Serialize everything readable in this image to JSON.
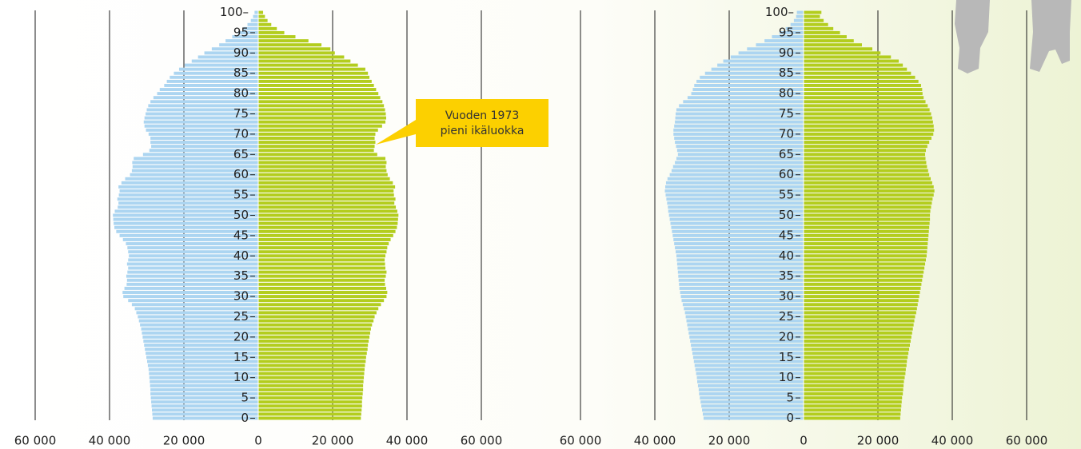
{
  "chart_data": [
    {
      "type": "pyramid",
      "y": [
        0,
        1,
        2,
        3,
        4,
        5,
        6,
        7,
        8,
        9,
        10,
        11,
        12,
        13,
        14,
        15,
        16,
        17,
        18,
        19,
        20,
        21,
        22,
        23,
        24,
        25,
        26,
        27,
        28,
        29,
        30,
        31,
        32,
        33,
        34,
        35,
        36,
        37,
        38,
        39,
        40,
        41,
        42,
        43,
        44,
        45,
        46,
        47,
        48,
        49,
        50,
        51,
        52,
        53,
        54,
        55,
        56,
        57,
        58,
        59,
        60,
        61,
        62,
        63,
        64,
        65,
        66,
        67,
        68,
        69,
        70,
        71,
        72,
        73,
        74,
        75,
        76,
        77,
        78,
        79,
        80,
        81,
        82,
        83,
        84,
        85,
        86,
        87,
        88,
        89,
        90,
        91,
        92,
        93,
        94,
        95,
        96,
        97,
        98,
        99,
        100
      ],
      "ylim": [
        -0.5,
        100.5
      ],
      "yticks": [
        0,
        5,
        10,
        15,
        20,
        25,
        30,
        35,
        40,
        45,
        50,
        55,
        60,
        65,
        70,
        75,
        80,
        85,
        90,
        95,
        {
          "value": 100,
          "label": "100–"
        }
      ],
      "xlim": [
        -60000,
        60000
      ],
      "xticks": [
        {
          "value": -60000,
          "label": "60 000"
        },
        {
          "value": -40000,
          "label": "40 000"
        },
        {
          "value": -20000,
          "label": "20 000"
        },
        0,
        {
          "value": 20000,
          "label": "20 000"
        },
        {
          "value": 40000,
          "label": "40 000"
        },
        {
          "value": 60000,
          "label": "60 000"
        }
      ],
      "grid": true,
      "annotation": [
        "Vuoden 1973",
        "pieni ikäluokka"
      ],
      "series": [
        {
          "color": "#acd5f1",
          "values": [
            -28400,
            -28500,
            -28600,
            -28700,
            -28800,
            -28900,
            -29000,
            -29000,
            -29100,
            -29200,
            -29300,
            -29400,
            -29500,
            -29700,
            -29900,
            -30100,
            -30300,
            -30500,
            -30700,
            -30900,
            -31100,
            -31300,
            -31500,
            -31800,
            -32100,
            -32400,
            -32800,
            -33200,
            -34000,
            -35000,
            -36300,
            -36500,
            -36000,
            -35400,
            -35300,
            -35500,
            -35200,
            -35000,
            -35300,
            -35000,
            -34800,
            -35000,
            -35200,
            -35600,
            -36400,
            -37300,
            -38200,
            -38700,
            -38900,
            -39000,
            -39100,
            -38600,
            -37800,
            -37600,
            -37900,
            -37500,
            -37300,
            -37600,
            -36800,
            -35800,
            -34500,
            -34000,
            -33800,
            -33900,
            -33500,
            -31000,
            -29300,
            -28800,
            -29000,
            -29000,
            -29500,
            -30200,
            -30600,
            -30800,
            -30600,
            -30300,
            -30000,
            -29600,
            -29000,
            -28200,
            -27200,
            -26500,
            -25300,
            -24600,
            -23800,
            -22700,
            -21300,
            -19800,
            -17900,
            -16200,
            -14500,
            -12500,
            -10500,
            -8800,
            -7000,
            -5400,
            -4000,
            -2900,
            -2000,
            -1400,
            -1000
          ]
        },
        {
          "color": "#b3cd1e",
          "values": [
            27600,
            27700,
            27800,
            27900,
            27900,
            28000,
            28100,
            28200,
            28200,
            28300,
            28400,
            28500,
            28600,
            28700,
            28900,
            29000,
            29200,
            29400,
            29500,
            29700,
            29900,
            30100,
            30300,
            30600,
            31000,
            31300,
            31800,
            32300,
            33000,
            33800,
            34500,
            34700,
            34400,
            34100,
            34000,
            34300,
            34500,
            34200,
            34100,
            34000,
            34200,
            34500,
            34700,
            35100,
            35600,
            36300,
            36900,
            37300,
            37500,
            37600,
            37700,
            37400,
            37000,
            36600,
            36900,
            36500,
            36400,
            36800,
            36200,
            35400,
            34800,
            34500,
            34300,
            34500,
            34200,
            32000,
            31100,
            31300,
            31500,
            31300,
            31500,
            32200,
            33300,
            34200,
            34400,
            34300,
            34100,
            33800,
            33400,
            32800,
            32300,
            31700,
            31100,
            30500,
            29900,
            29500,
            28800,
            26800,
            24800,
            23100,
            20600,
            19400,
            17000,
            13500,
            10000,
            7000,
            5000,
            3500,
            2500,
            1800,
            1300
          ]
        }
      ]
    },
    {
      "type": "pyramid",
      "y": [
        0,
        1,
        2,
        3,
        4,
        5,
        6,
        7,
        8,
        9,
        10,
        11,
        12,
        13,
        14,
        15,
        16,
        17,
        18,
        19,
        20,
        21,
        22,
        23,
        24,
        25,
        26,
        27,
        28,
        29,
        30,
        31,
        32,
        33,
        34,
        35,
        36,
        37,
        38,
        39,
        40,
        41,
        42,
        43,
        44,
        45,
        46,
        47,
        48,
        49,
        50,
        51,
        52,
        53,
        54,
        55,
        56,
        57,
        58,
        59,
        60,
        61,
        62,
        63,
        64,
        65,
        66,
        67,
        68,
        69,
        70,
        71,
        72,
        73,
        74,
        75,
        76,
        77,
        78,
        79,
        80,
        81,
        82,
        83,
        84,
        85,
        86,
        87,
        88,
        89,
        90,
        91,
        92,
        93,
        94,
        95,
        96,
        97,
        98,
        99,
        100
      ],
      "ylim": [
        -0.5,
        100.5
      ],
      "yticks": [
        0,
        5,
        10,
        15,
        20,
        25,
        30,
        35,
        40,
        45,
        50,
        55,
        60,
        65,
        70,
        75,
        80,
        85,
        90,
        95,
        {
          "value": 100,
          "label": "100–"
        }
      ],
      "xlim": [
        -60000,
        60000
      ],
      "xticks": [
        {
          "value": -60000,
          "label": "60 000"
        },
        {
          "value": -40000,
          "label": "40 000"
        },
        {
          "value": -20000,
          "label": "20 000"
        },
        0,
        {
          "value": 20000,
          "label": "20 000"
        },
        {
          "value": 40000,
          "label": "40 000"
        },
        {
          "value": 60000,
          "label": "60 000"
        }
      ],
      "grid": true,
      "series": [
        {
          "color": "#acd5f1",
          "values": [
            -26900,
            -27100,
            -27300,
            -27500,
            -27700,
            -27900,
            -28100,
            -28200,
            -28400,
            -28600,
            -28700,
            -28900,
            -29100,
            -29300,
            -29500,
            -29700,
            -29900,
            -30100,
            -30300,
            -30500,
            -30700,
            -30900,
            -31100,
            -31300,
            -31500,
            -31700,
            -31900,
            -32200,
            -32500,
            -32800,
            -33000,
            -33200,
            -33400,
            -33500,
            -33600,
            -33700,
            -33800,
            -33900,
            -34000,
            -34100,
            -34200,
            -34400,
            -34600,
            -34800,
            -35000,
            -35200,
            -35400,
            -35600,
            -35800,
            -36000,
            -36200,
            -36400,
            -36500,
            -36700,
            -36900,
            -37100,
            -37300,
            -37200,
            -37000,
            -36600,
            -36000,
            -35500,
            -35100,
            -34600,
            -34200,
            -33800,
            -34000,
            -34300,
            -34600,
            -34800,
            -35000,
            -35000,
            -34800,
            -34600,
            -34500,
            -34400,
            -34200,
            -33500,
            -32400,
            -31200,
            -30200,
            -29800,
            -29400,
            -28800,
            -27900,
            -26500,
            -24800,
            -23200,
            -21600,
            -19600,
            -17500,
            -15200,
            -12800,
            -10500,
            -8500,
            -6500,
            -4800,
            -3500,
            -2600,
            -2000,
            -1800
          ]
        },
        {
          "color": "#b3cd1e",
          "values": [
            26000,
            26100,
            26200,
            26300,
            26400,
            26500,
            26700,
            26800,
            26900,
            27000,
            27200,
            27400,
            27500,
            27700,
            27800,
            28000,
            28200,
            28400,
            28600,
            28800,
            29000,
            29200,
            29400,
            29600,
            29800,
            30000,
            30300,
            30500,
            30700,
            30900,
            31100,
            31300,
            31500,
            31700,
            31900,
            32100,
            32300,
            32500,
            32700,
            32900,
            33100,
            33200,
            33300,
            33400,
            33500,
            33600,
            33700,
            33800,
            33900,
            34000,
            34000,
            34100,
            34300,
            34500,
            34700,
            35000,
            35200,
            35000,
            34600,
            34200,
            33800,
            33500,
            33200,
            33000,
            32800,
            32700,
            32900,
            33300,
            33800,
            34400,
            34900,
            35100,
            35000,
            34800,
            34600,
            34300,
            33900,
            33400,
            32800,
            32300,
            32000,
            31900,
            31600,
            30900,
            30000,
            28900,
            27800,
            26700,
            25600,
            23500,
            20700,
            18500,
            15700,
            13500,
            11600,
            9800,
            8000,
            6600,
            5400,
            4400,
            4800
          ]
        }
      ]
    }
  ]
}
